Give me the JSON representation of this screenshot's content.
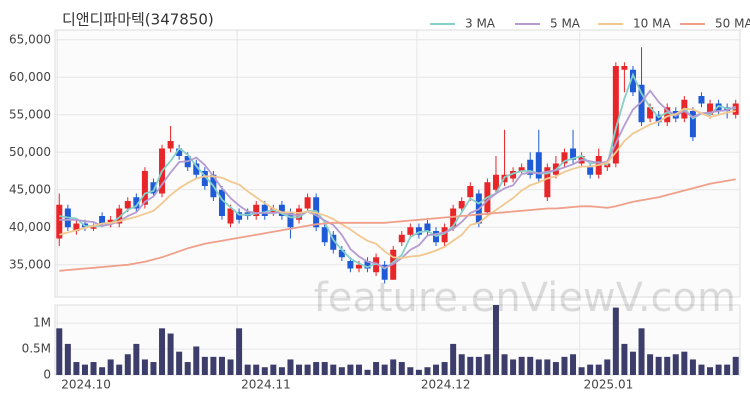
{
  "chart_data": [
    {
      "type": "candlestick",
      "title": "디앤디파마텍(347850)",
      "watermark": "feature.enViewV.com",
      "categories": [
        "2024.10",
        null,
        null,
        null,
        null,
        null,
        null,
        null,
        null,
        null,
        null,
        null,
        null,
        null,
        null,
        null,
        null,
        null,
        null,
        null,
        null,
        "2024.11",
        null,
        null,
        null,
        null,
        null,
        null,
        null,
        null,
        null,
        null,
        null,
        null,
        null,
        null,
        null,
        null,
        null,
        null,
        null,
        null,
        "2024.12",
        null,
        null,
        null,
        null,
        null,
        null,
        null,
        null,
        null,
        null,
        null,
        null,
        null,
        null,
        null,
        null,
        null,
        null,
        "2025.01",
        null,
        null,
        null,
        null,
        null,
        null,
        null,
        null,
        null,
        null,
        null,
        null,
        null,
        null,
        null,
        null,
        null,
        null
      ],
      "open": [
        38500,
        42500,
        39500,
        40500,
        39800,
        41500,
        40500,
        40500,
        42500,
        44000,
        43000,
        46000,
        44500,
        50500,
        50500,
        49500,
        48500,
        47500,
        47000,
        45000,
        40500,
        42000,
        42000,
        41500,
        43000,
        42000,
        43000,
        42000,
        41000,
        42500,
        44000,
        40000,
        39000,
        37000,
        35500,
        34500,
        35500,
        34000,
        35000,
        33000,
        38000,
        39000,
        40000,
        40500,
        39500,
        38000,
        40000,
        42500,
        44000,
        44500,
        42000,
        45000,
        46000,
        46500,
        47500,
        49000,
        50000,
        44000,
        47000,
        48500,
        50500,
        48500,
        48000,
        47000,
        48000,
        48500,
        61000,
        61000,
        59000,
        54500,
        55000,
        54000,
        55500,
        54500,
        55500,
        57500,
        55000,
        56500,
        56000,
        55000
      ],
      "high": [
        44500,
        43000,
        41000,
        41000,
        40500,
        42000,
        41500,
        43000,
        44000,
        44500,
        48000,
        46500,
        51000,
        53500,
        51000,
        50000,
        49000,
        48000,
        47500,
        45500,
        43000,
        42500,
        42500,
        43500,
        43500,
        43000,
        43500,
        42500,
        43000,
        44500,
        44500,
        40500,
        39500,
        37500,
        36000,
        35500,
        36000,
        36500,
        35500,
        37500,
        39500,
        40500,
        40500,
        41000,
        40000,
        40500,
        43000,
        44000,
        46000,
        45000,
        46500,
        49500,
        53000,
        48000,
        48500,
        50000,
        53000,
        48500,
        49500,
        50500,
        53000,
        50000,
        48500,
        50500,
        49000,
        62000,
        62000,
        61500,
        64000,
        56500,
        55500,
        56500,
        56000,
        57500,
        56000,
        58000,
        57000,
        57000,
        56500,
        57000
      ],
      "low": [
        37500,
        39500,
        39000,
        39500,
        39500,
        40000,
        40000,
        40000,
        42000,
        42000,
        42500,
        44000,
        44000,
        50000,
        49000,
        47500,
        46500,
        45000,
        43500,
        41000,
        40000,
        40500,
        41000,
        41000,
        41000,
        41500,
        41000,
        38500,
        40500,
        42000,
        39500,
        37500,
        36500,
        35500,
        34000,
        34000,
        34000,
        33500,
        32500,
        33000,
        37500,
        38500,
        38500,
        39000,
        37500,
        37500,
        39500,
        42000,
        43500,
        40000,
        41500,
        44500,
        45500,
        46000,
        47000,
        46500,
        46000,
        43500,
        46500,
        48000,
        48500,
        48000,
        46500,
        46500,
        47500,
        48000,
        58000,
        57500,
        53500,
        54000,
        53500,
        53500,
        54000,
        54000,
        51500,
        56000,
        54500,
        55000,
        54500,
        54500
      ],
      "close": [
        43000,
        40000,
        40500,
        40000,
        40000,
        40500,
        41000,
        42500,
        43500,
        42500,
        47500,
        44500,
        50500,
        51500,
        49500,
        48000,
        47000,
        45500,
        44000,
        41500,
        42500,
        41000,
        41500,
        43000,
        41500,
        42500,
        41500,
        40000,
        42500,
        44000,
        40000,
        38000,
        37000,
        36000,
        34500,
        35000,
        34500,
        36000,
        33000,
        37000,
        39000,
        40000,
        39000,
        39500,
        38000,
        40000,
        42500,
        43500,
        45500,
        40500,
        46000,
        47000,
        47000,
        47500,
        48000,
        47000,
        46500,
        48000,
        48500,
        50000,
        49000,
        49500,
        47000,
        49500,
        48500,
        61500,
        61500,
        58000,
        54000,
        56000,
        54000,
        56000,
        54500,
        57000,
        52000,
        56500,
        56500,
        55500,
        55500,
        56500
      ],
      "up_color": "#e8262a",
      "down_color": "#1f5bd6",
      "series": [
        {
          "name": "3 MA",
          "color": "#86d0c9",
          "values": [
            41500,
            41300,
            41170,
            40170,
            40170,
            40170,
            40500,
            41330,
            42330,
            42830,
            44500,
            44830,
            47500,
            48830,
            50500,
            49670,
            48170,
            46830,
            45500,
            43670,
            42670,
            41670,
            41670,
            41830,
            42000,
            42330,
            41830,
            41330,
            41330,
            42170,
            42170,
            40670,
            38330,
            37000,
            35830,
            35170,
            34670,
            35170,
            34500,
            35330,
            36330,
            38670,
            39330,
            39500,
            38830,
            39170,
            40170,
            42000,
            43830,
            43170,
            44000,
            44500,
            46670,
            47170,
            47500,
            47500,
            47170,
            47170,
            47670,
            48830,
            49170,
            49500,
            48500,
            48670,
            48330,
            53170,
            57170,
            60330,
            57830,
            56000,
            54670,
            55330,
            54830,
            55830,
            54500,
            55170,
            55000,
            56170,
            55830,
            55830
          ]
        },
        {
          "name": "5 MA",
          "color": "#b49bd0",
          "values": [
            41000,
            41000,
            41000,
            40800,
            40700,
            40200,
            40400,
            40800,
            41500,
            42000,
            43400,
            44100,
            45700,
            47300,
            48700,
            48800,
            49300,
            48300,
            46800,
            45200,
            43900,
            42900,
            42100,
            41900,
            41900,
            41900,
            42000,
            41700,
            41600,
            42100,
            41600,
            40900,
            40300,
            39000,
            37100,
            36100,
            35400,
            35200,
            34600,
            35100,
            35900,
            37000,
            37600,
            38900,
            39100,
            39300,
            39800,
            40700,
            41900,
            42400,
            43600,
            44500,
            45200,
            45600,
            47100,
            47300,
            47200,
            47400,
            47600,
            48000,
            48400,
            49000,
            48800,
            48600,
            48700,
            51200,
            53600,
            55700,
            56700,
            58200,
            56700,
            55600,
            54900,
            55500,
            54700,
            55200,
            55300,
            55500,
            55600,
            56100
          ]
        },
        {
          "name": "10 MA",
          "color": "#f2c88f",
          "values": [
            39000,
            39300,
            39600,
            39900,
            40200,
            40500,
            40600,
            40800,
            41100,
            41400,
            41800,
            42200,
            43200,
            44300,
            45200,
            45900,
            46500,
            46800,
            46800,
            46600,
            46100,
            45700,
            44800,
            44000,
            43200,
            42500,
            42000,
            42000,
            41900,
            42100,
            41900,
            41600,
            41100,
            40400,
            39700,
            38900,
            38200,
            37800,
            36800,
            36000,
            35900,
            36100,
            36200,
            36500,
            36900,
            37400,
            38200,
            39000,
            40300,
            40600,
            41500,
            42300,
            43100,
            43900,
            44900,
            45600,
            46000,
            46500,
            46800,
            47400,
            47800,
            48100,
            48100,
            48300,
            48600,
            50000,
            51500,
            52500,
            53100,
            53700,
            54100,
            54800,
            55100,
            55800,
            55700,
            55200,
            54700,
            55000,
            55300,
            55500
          ]
        },
        {
          "name": "50 MA",
          "color": "#f0a08a",
          "values": [
            34200,
            34300,
            34400,
            34500,
            34600,
            34700,
            34800,
            34900,
            35000,
            35200,
            35400,
            35700,
            36000,
            36400,
            36800,
            37200,
            37500,
            37800,
            38000,
            38200,
            38400,
            38600,
            38800,
            39000,
            39200,
            39400,
            39600,
            39800,
            40000,
            40200,
            40400,
            40500,
            40600,
            40600,
            40600,
            40600,
            40600,
            40600,
            40600,
            40700,
            40800,
            40900,
            41000,
            41100,
            41200,
            41300,
            41400,
            41500,
            41600,
            41700,
            41800,
            41900,
            42000,
            42100,
            42200,
            42300,
            42400,
            42500,
            42500,
            42600,
            42700,
            42800,
            42800,
            42700,
            42600,
            42800,
            43100,
            43400,
            43600,
            43800,
            44000,
            44300,
            44600,
            44900,
            45200,
            45500,
            45800,
            46000,
            46200,
            46400
          ]
        }
      ],
      "ylim": [
        30700,
        66300
      ],
      "yticks": [
        {
          "value": 35000,
          "label": "35,000"
        },
        {
          "value": 40000,
          "label": "40,000"
        },
        {
          "value": 45000,
          "label": "45,000"
        },
        {
          "value": 50000,
          "label": "50,000"
        },
        {
          "value": 55000,
          "label": "55,000"
        },
        {
          "value": 60000,
          "label": "60,000"
        },
        {
          "value": 65000,
          "label": "65,000"
        }
      ],
      "grid": true,
      "legend": "top-right"
    },
    {
      "type": "bar",
      "color": "#3d3d6b",
      "values": [
        900000,
        600000,
        250000,
        200000,
        250000,
        150000,
        300000,
        200000,
        400000,
        600000,
        300000,
        250000,
        900000,
        800000,
        450000,
        250000,
        550000,
        350000,
        350000,
        350000,
        300000,
        900000,
        200000,
        200000,
        150000,
        200000,
        150000,
        300000,
        200000,
        200000,
        250000,
        250000,
        200000,
        150000,
        200000,
        200000,
        100000,
        250000,
        200000,
        300000,
        250000,
        150000,
        100000,
        150000,
        200000,
        250000,
        600000,
        400000,
        350000,
        350000,
        400000,
        1350000,
        400000,
        300000,
        350000,
        350000,
        300000,
        300000,
        250000,
        350000,
        400000,
        150000,
        200000,
        200000,
        300000,
        1300000,
        600000,
        450000,
        900000,
        400000,
        350000,
        350000,
        400000,
        450000,
        300000,
        200000,
        150000,
        200000,
        200000,
        350000
      ],
      "ylim": [
        0,
        1350000
      ],
      "yticks": [
        0,
        {
          "value": 500000,
          "label": "0.5M"
        },
        {
          "value": 1000000,
          "label": "1M"
        }
      ],
      "grid": true
    }
  ]
}
